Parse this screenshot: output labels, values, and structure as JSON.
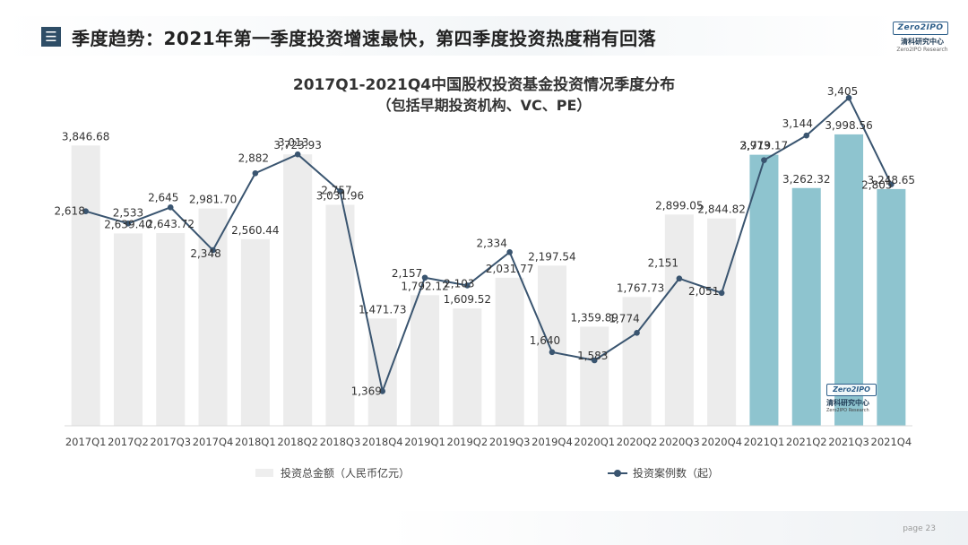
{
  "header": {
    "section_icon": "☰",
    "title": "季度趋势：2021年第一季度投资增速最快，第四季度投资热度稍有回落"
  },
  "logo": {
    "mark": "Zero2IPO",
    "cn": "清科研究中心",
    "en": "Zero2IPO Research"
  },
  "watermark": {
    "mark": "Zero2IPO",
    "cn": "清科研究中心",
    "en": "Zero2IPO Research"
  },
  "footer": {
    "page_label": "page  23"
  },
  "chart_data": {
    "type": "bar+line",
    "title": "2017Q1-2021Q4中国股权投资基金投资情况季度分布",
    "subtitle": "（包括早期投资机构、VC、PE）",
    "categories": [
      "2017Q1",
      "2017Q2",
      "2017Q3",
      "2017Q4",
      "2018Q1",
      "2018Q2",
      "2018Q3",
      "2018Q4",
      "2019Q1",
      "2019Q2",
      "2019Q3",
      "2019Q4",
      "2020Q1",
      "2020Q2",
      "2020Q3",
      "2020Q4",
      "2021Q1",
      "2021Q2",
      "2021Q3",
      "2021Q4"
    ],
    "bar_series": {
      "name": "投资总金额（人民币亿元）",
      "values": [
        3846.68,
        2639.4,
        2643.72,
        2981.7,
        2560.44,
        3723.93,
        3031.96,
        1471.73,
        1792.12,
        1609.52,
        2031.77,
        2197.54,
        1359.89,
        1767.73,
        2899.05,
        2844.82,
        3719.17,
        3262.32,
        3998.56,
        3248.65
      ],
      "labels": [
        "3,846.68",
        "2,639.40",
        "2,643.72",
        "2,981.70",
        "2,560.44",
        "3,723.93",
        "3,031.96",
        "1,471.73",
        "1,792.12",
        "1,609.52",
        "2,031.77",
        "2,197.54",
        "1,359.89",
        "1,767.73",
        "2,899.05",
        "2,844.82",
        "3,719.17",
        "3,262.32",
        "3,998.56",
        "3,248.65"
      ],
      "color_default": "#ececec",
      "color_highlight": "#8ec4cf"
    },
    "line_series": {
      "name": "投资案例数（起）",
      "values": [
        2618,
        2533,
        2645,
        2348,
        2882,
        3013,
        2757,
        1369,
        2157,
        2103,
        2334,
        1640,
        1583,
        1774,
        2151,
        2051,
        2973,
        3144,
        3405,
        2805
      ],
      "labels": [
        "2,618",
        "2,533",
        "2,645",
        "2,348",
        "2,882",
        "3,013",
        "2,757",
        "1,369",
        "2,157",
        "2,103",
        "2,334",
        "1,640",
        "1,583",
        "1,774",
        "2,151",
        "2,051",
        "2,973",
        "3,144",
        "3,405",
        "2,805"
      ],
      "color": "#3a5570"
    },
    "legend_position": "bottom"
  }
}
